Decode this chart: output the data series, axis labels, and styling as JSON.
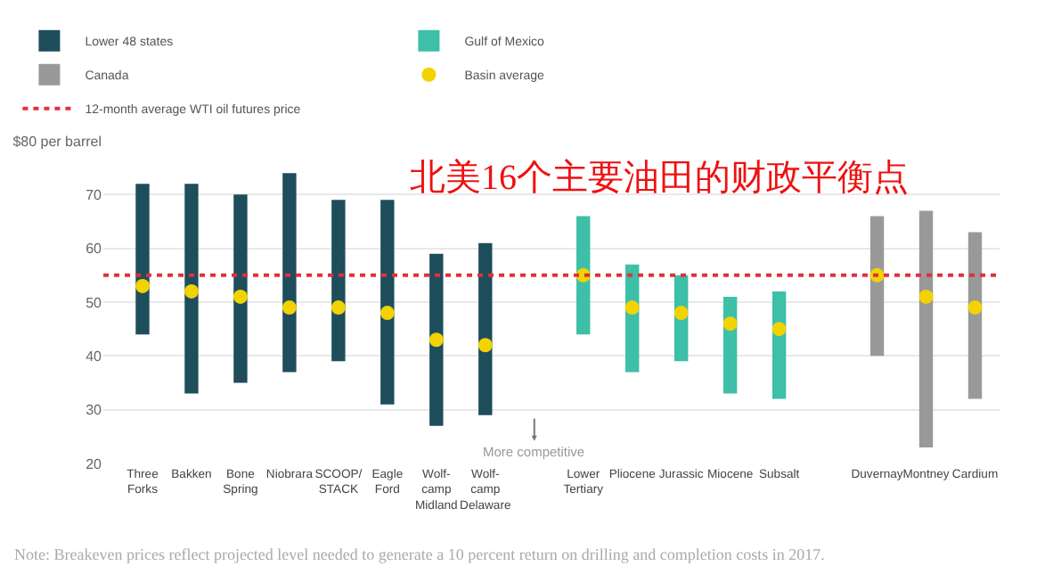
{
  "chart_data": {
    "type": "bar",
    "title": "北美16个主要油田的财政平衡点",
    "categories": [
      "Three\nForks",
      "Bakken",
      "Bone\nSpring",
      "Niobrara",
      "SCOOP/\nSTACK",
      "Eagle\nFord",
      "Wolf-\ncamp\nMidland",
      "Wolf-\ncamp\nDelaware",
      null,
      "Lower\nTertiary",
      "Pliocene",
      "Jurassic",
      "Miocene",
      "Subsalt",
      null,
      "Duvernay",
      "Montney",
      "Cardium"
    ],
    "ylim": [
      20,
      80
    ],
    "yticks": [
      20,
      30,
      40,
      50,
      60,
      70,
      {
        "value": 80,
        "label": "$80 per barrel"
      }
    ],
    "grid": "y",
    "legend": "top",
    "series": [
      {
        "name": "Lower 48 states",
        "color": "#1e4d5c",
        "base": [
          44,
          33,
          35,
          37,
          39,
          31,
          27,
          29,
          null,
          null,
          null,
          null,
          null,
          null,
          null,
          null,
          null,
          null
        ],
        "values": [
          28,
          39,
          35,
          37,
          30,
          38,
          32,
          32,
          null,
          null,
          null,
          null,
          null,
          null,
          null,
          null,
          null,
          null
        ]
      },
      {
        "name": "Gulf of Mexico",
        "color": "#3dbfa8",
        "base": [
          null,
          null,
          null,
          null,
          null,
          null,
          null,
          null,
          null,
          44,
          37,
          39,
          33,
          32,
          null,
          null,
          null,
          null
        ],
        "values": [
          null,
          null,
          null,
          null,
          null,
          null,
          null,
          null,
          null,
          22,
          20,
          16,
          18,
          20,
          null,
          null,
          null,
          null
        ]
      },
      {
        "name": "Canada",
        "color": "#999999",
        "base": [
          null,
          null,
          null,
          null,
          null,
          null,
          null,
          null,
          null,
          null,
          null,
          null,
          null,
          null,
          null,
          40,
          23,
          32
        ],
        "values": [
          null,
          null,
          null,
          null,
          null,
          null,
          null,
          null,
          null,
          null,
          null,
          null,
          null,
          null,
          null,
          26,
          44,
          31
        ]
      },
      {
        "name": "Basin average",
        "type": "scatter",
        "marker": "circle",
        "color": "#f2d300",
        "values": [
          53,
          52,
          51,
          49,
          49,
          48,
          43,
          42,
          null,
          55,
          49,
          48,
          46,
          45,
          null,
          55,
          51,
          49
        ]
      }
    ],
    "ref_lines": [
      {
        "axis": "y",
        "value": 55,
        "label": "12-month average WTI oil futures price",
        "color": "#e0303a",
        "line_style": "dotted"
      }
    ],
    "annotations": [
      "More competitive",
      "Note: Breakeven prices reflect projected level needed to generate a 10 percent return on drilling and completion costs in 2017."
    ]
  }
}
